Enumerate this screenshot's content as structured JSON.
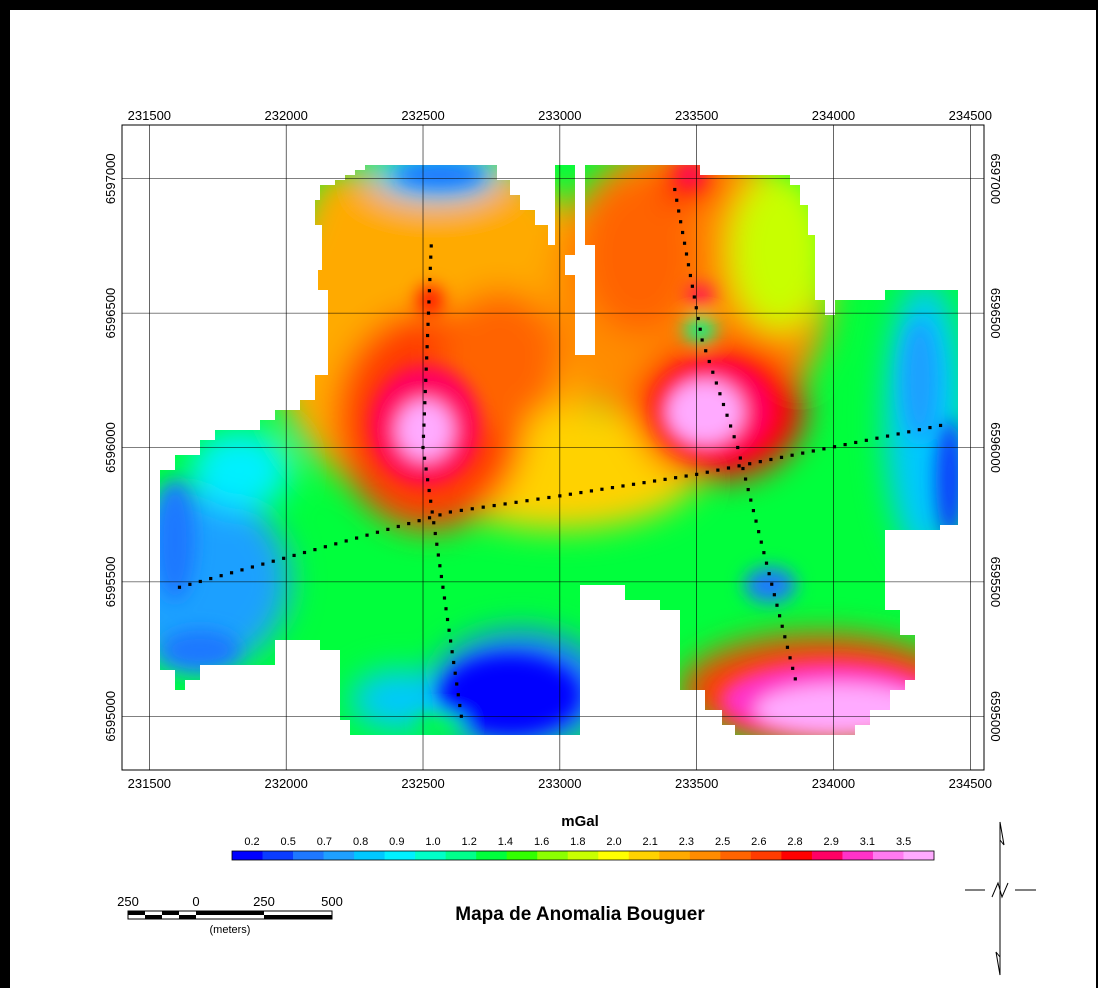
{
  "map": {
    "title": "Mapa de Anomalia Bouguer",
    "unit_label": "mGal",
    "x_ticks": [
      "231500",
      "232000",
      "232500",
      "233000",
      "233500",
      "234000",
      "234500"
    ],
    "y_ticks": [
      "6597000",
      "6596500",
      "6596000",
      "6595500",
      "6595000"
    ],
    "legend": {
      "labels": [
        "0.2",
        "0.5",
        "0.7",
        "0.8",
        "0.9",
        "1.0",
        "1.2",
        "1.4",
        "1.6",
        "1.8",
        "2.0",
        "2.1",
        "2.3",
        "2.5",
        "2.6",
        "2.8",
        "2.9",
        "3.1",
        "3.5"
      ],
      "colors": [
        "#0000ff",
        "#0a3cff",
        "#1e78ff",
        "#1ea0ff",
        "#00c8ff",
        "#00f0ff",
        "#00ffc8",
        "#00ff8c",
        "#00ff3c",
        "#32ff00",
        "#8cff00",
        "#c8ff00",
        "#ffff00",
        "#ffd200",
        "#ffaa00",
        "#ff8c00",
        "#ff6400",
        "#ff3c00",
        "#ff0000",
        "#ff0064",
        "#ff32c8",
        "#ff7af0",
        "#ffaaff"
      ]
    },
    "scale_bar": {
      "labels": [
        "250",
        "0",
        "250",
        "500"
      ],
      "unit": "(meters)"
    }
  },
  "chart_data": {
    "type": "heatmap",
    "title": "Mapa de Anomalia Bouguer",
    "xlim": [
      231400,
      234550
    ],
    "ylim": [
      6594800,
      6597200
    ],
    "colorbar_label": "mGal",
    "anomalies": [
      {
        "x": 232500,
        "y": 6596000,
        "level": "high",
        "value": 3.5
      },
      {
        "x": 233520,
        "y": 6596070,
        "level": "high",
        "value": 3.5
      },
      {
        "x": 233440,
        "y": 6596960,
        "level": "high",
        "value": 3.0
      },
      {
        "x": 233960,
        "y": 6595050,
        "level": "high",
        "value": 3.5
      },
      {
        "x": 232800,
        "y": 6595030,
        "level": "low",
        "value": 0.2
      },
      {
        "x": 232530,
        "y": 6596940,
        "level": "low",
        "value": 0.4
      },
      {
        "x": 234420,
        "y": 6595900,
        "level": "low",
        "value": 0.3
      },
      {
        "x": 233760,
        "y": 6595440,
        "level": "low",
        "value": 0.6
      },
      {
        "x": 231620,
        "y": 6595400,
        "level": "low",
        "value": 0.8
      },
      {
        "x": 233520,
        "y": 6596370,
        "level": "low",
        "value": 1.3
      }
    ],
    "profiles": [
      {
        "name": "profile-1",
        "points": [
          [
            231610,
            6595480
          ],
          [
            232600,
            6595760
          ],
          [
            233000,
            6595820
          ],
          [
            233500,
            6595900
          ],
          [
            234430,
            6596090
          ]
        ]
      },
      {
        "name": "profile-2",
        "points": [
          [
            232530,
            6596750
          ],
          [
            232500,
            6596000
          ],
          [
            232640,
            6595000
          ],
          [
            232650,
            6594940
          ]
        ]
      },
      {
        "name": "profile-3",
        "points": [
          [
            233420,
            6596960
          ],
          [
            233520,
            6596400
          ],
          [
            233650,
            6596000
          ],
          [
            233870,
            6595100
          ]
        ]
      }
    ]
  }
}
